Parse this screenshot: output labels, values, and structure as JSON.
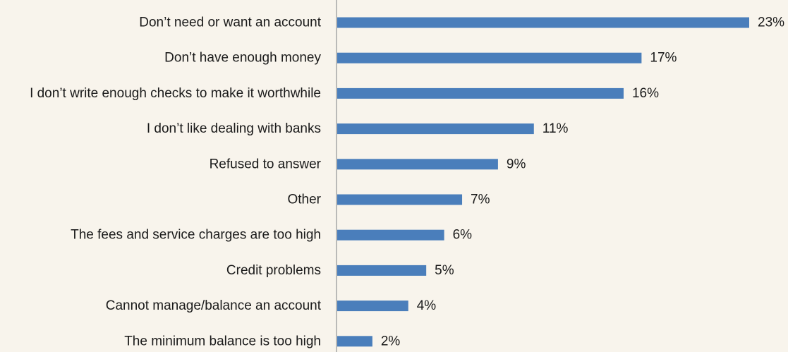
{
  "chart_data": {
    "type": "bar",
    "orientation": "horizontal",
    "categories": [
      "Don’t need or want an account",
      "Don’t have enough money",
      "I don’t write enough checks to make it worthwhile",
      "I don’t like dealing with banks",
      "Refused to answer",
      "Other",
      "The fees and service charges are too high",
      "Credit problems",
      "Cannot manage/balance an account",
      "The minimum balance is too high"
    ],
    "values": [
      23,
      17,
      16,
      11,
      9,
      7,
      6,
      5,
      4,
      2
    ],
    "value_labels": [
      "23%",
      "17%",
      "16%",
      "11%",
      "9%",
      "7%",
      "6%",
      "5%",
      "4%",
      "2%"
    ],
    "xlim": [
      0,
      23
    ],
    "title": "",
    "xlabel": "",
    "ylabel": "",
    "grid": false,
    "legend": "none"
  },
  "colors": {
    "bar": "#4a7ebb",
    "background": "#f8f4ec",
    "axis": "#a6a6a6",
    "text": "#1a1a1a"
  }
}
